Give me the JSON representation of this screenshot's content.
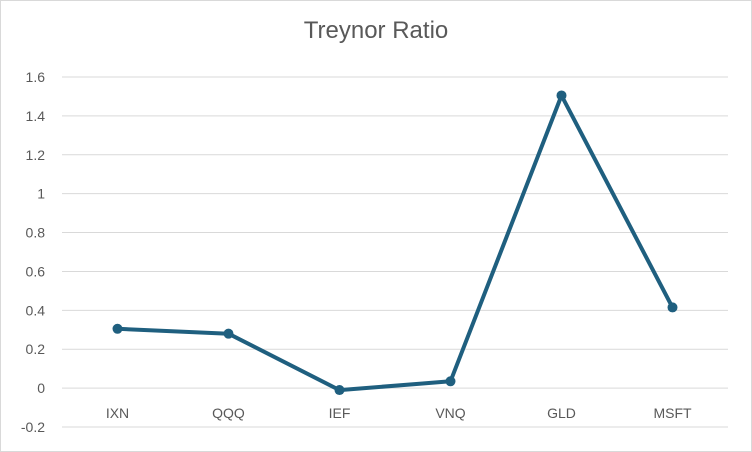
{
  "chart_data": {
    "type": "line",
    "title": "Treynor Ratio",
    "xlabel": "",
    "ylabel": "",
    "categories": [
      "IXN",
      "QQQ",
      "IEF",
      "VNQ",
      "GLD",
      "MSFT"
    ],
    "series": [
      {
        "values": [
          0.305,
          0.28,
          -0.01,
          0.035,
          1.505,
          0.415
        ],
        "color": "#1f5f7f"
      }
    ],
    "ylim": [
      -0.2,
      1.6
    ],
    "yticks": [
      "-0.2",
      "0",
      "0.2",
      "0.4",
      "0.6",
      "0.8",
      "1",
      "1.2",
      "1.4",
      "1.6"
    ],
    "grid": true,
    "legend": "none",
    "colors": {
      "line": "#1f5f7f",
      "grid": "#d9d9d9",
      "text": "#595959"
    }
  }
}
